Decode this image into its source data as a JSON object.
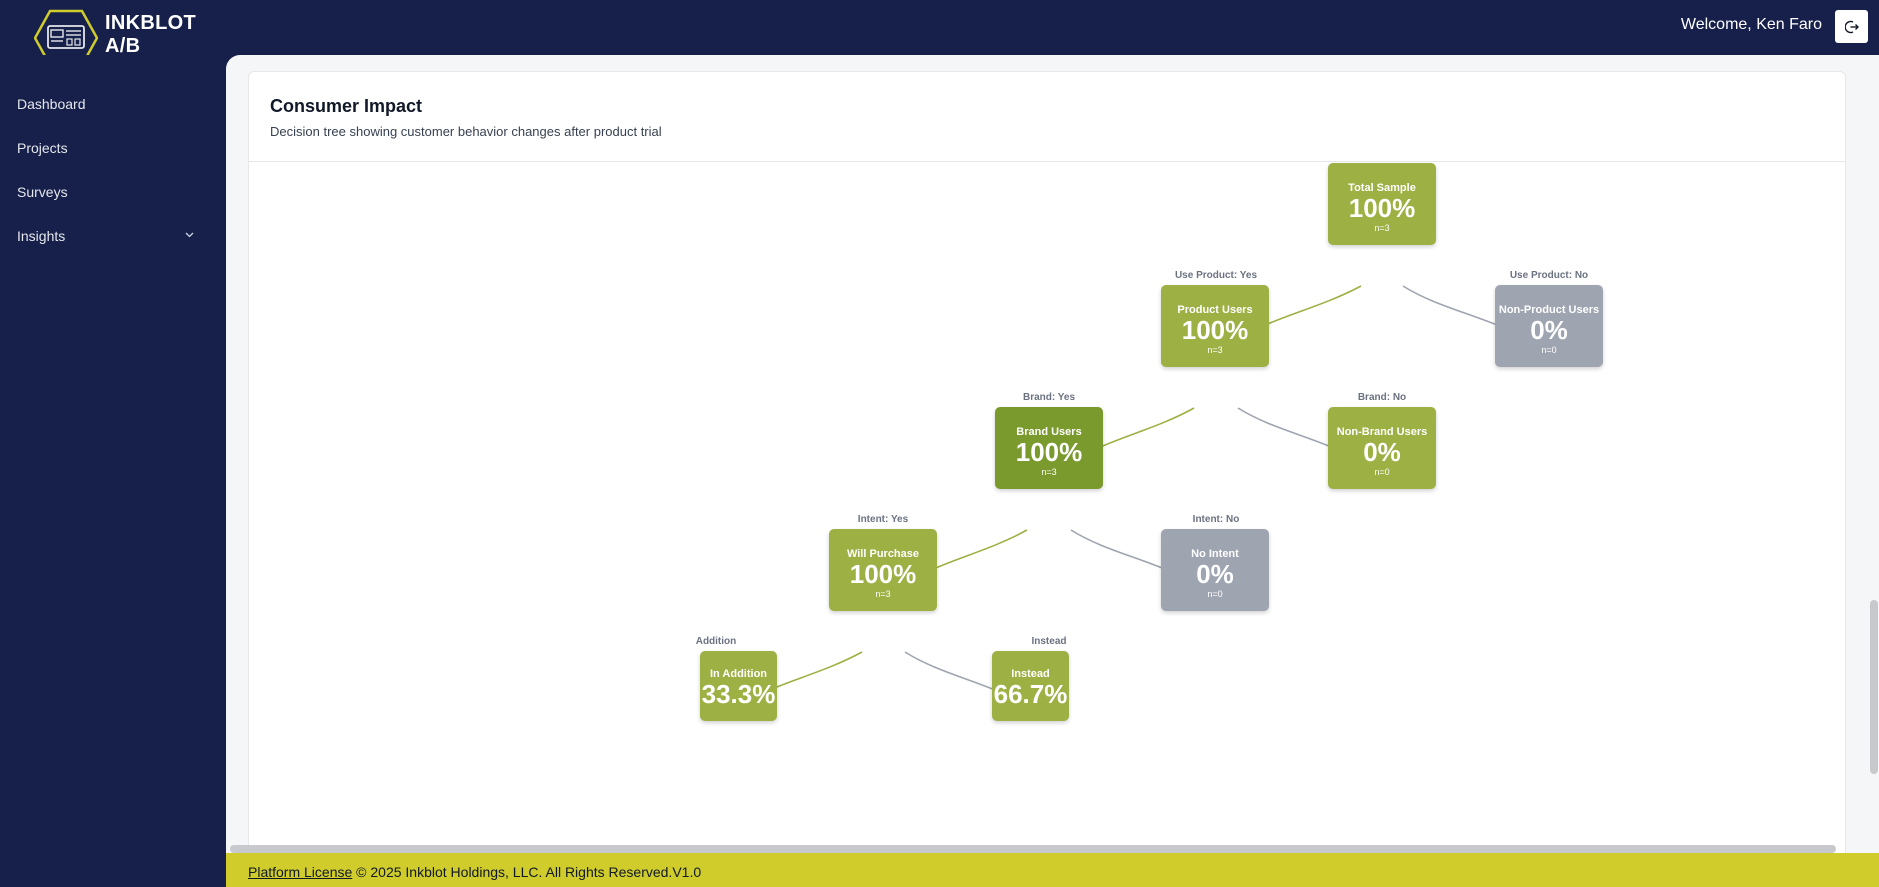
{
  "brand": {
    "line1": "INKBLOT",
    "line2": "A/B",
    "logo_icon": "hexagon-logo-icon",
    "accent": "#cfcc2c"
  },
  "header": {
    "welcome": "Welcome, Ken Faro",
    "logout_icon": "logout-icon"
  },
  "sidebar": {
    "items": [
      {
        "label": "Dashboard"
      },
      {
        "label": "Projects"
      },
      {
        "label": "Surveys"
      },
      {
        "label": "Insights",
        "icon": "chevron-down-icon"
      }
    ]
  },
  "card": {
    "title": "Consumer Impact",
    "subtitle": "Decision tree showing customer behavior changes after product trial"
  },
  "tree": {
    "colors": {
      "green": "#9db043",
      "dark": "#7a9a2e",
      "gray": "#9ea4b0"
    },
    "nodes": {
      "total": {
        "label": "Total Sample",
        "pct": "100%",
        "n": "n=3"
      },
      "product_users": {
        "label": "Product Users",
        "pct": "100%",
        "n": "n=3"
      },
      "non_product_users": {
        "label": "Non-Product Users",
        "pct": "0%",
        "n": "n=0"
      },
      "brand_users": {
        "label": "Brand Users",
        "pct": "100%",
        "n": "n=3"
      },
      "non_brand_users": {
        "label": "Non-Brand Users",
        "pct": "0%",
        "n": "n=0"
      },
      "will_purchase": {
        "label": "Will Purchase",
        "pct": "100%",
        "n": "n=3"
      },
      "no_intent": {
        "label": "No Intent",
        "pct": "0%",
        "n": "n=0"
      },
      "in_addition": {
        "label": "In Addition",
        "pct": "33.3%"
      },
      "instead": {
        "label": "Instead",
        "pct": "66.7%"
      }
    },
    "branches": {
      "use_product_yes": "Use Product: Yes",
      "use_product_no": "Use Product: No",
      "brand_yes": "Brand: Yes",
      "brand_no": "Brand: No",
      "intent_yes": "Intent: Yes",
      "intent_no": "Intent: No",
      "addition": "Addition",
      "instead": "Instead"
    }
  },
  "footer": {
    "link": "Platform License",
    "text": " © 2025 Inkblot Holdings, LLC. All Rights Reserved.V1.0"
  }
}
